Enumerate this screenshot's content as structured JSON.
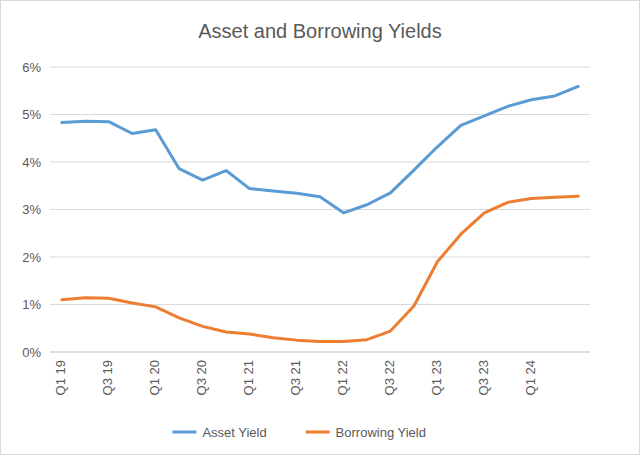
{
  "chart_data": {
    "type": "line",
    "title": "Asset and Borrowing Yields",
    "categories": [
      "Q1 19",
      null,
      "Q3 19",
      null,
      "Q1 20",
      null,
      "Q3 20",
      null,
      "Q1 21",
      null,
      "Q3 21",
      null,
      "Q1 22",
      null,
      "Q3 22",
      null,
      "Q1 23",
      null,
      "Q3 23",
      null,
      "Q1 24",
      null,
      null
    ],
    "series": [
      {
        "name": "Asset Yield",
        "color": "#5b9bd5",
        "values": [
          4.83,
          4.86,
          4.85,
          4.6,
          4.68,
          3.86,
          3.62,
          3.82,
          3.44,
          3.39,
          3.34,
          3.27,
          2.93,
          3.1,
          3.35,
          3.83,
          4.32,
          4.77,
          4.97,
          5.17,
          5.31,
          5.39,
          5.59
        ]
      },
      {
        "name": "Borrowing Yield",
        "color": "#ed7d31",
        "values": [
          1.1,
          1.14,
          1.13,
          1.03,
          0.95,
          0.72,
          0.54,
          0.42,
          0.38,
          0.3,
          0.25,
          0.22,
          0.22,
          0.26,
          0.44,
          0.97,
          1.9,
          2.48,
          2.93,
          3.15,
          3.23,
          3.26,
          3.28
        ]
      }
    ],
    "ylim": [
      0,
      6
    ],
    "yticks": [
      {
        "value": 0,
        "label": "0%"
      },
      {
        "value": 1,
        "label": "1%"
      },
      {
        "value": 2,
        "label": "2%"
      },
      {
        "value": 3,
        "label": "3%"
      },
      {
        "value": 4,
        "label": "4%"
      },
      {
        "value": 5,
        "label": "5%"
      },
      {
        "value": 6,
        "label": "6%"
      }
    ],
    "grid": true,
    "legend": "bottom"
  }
}
